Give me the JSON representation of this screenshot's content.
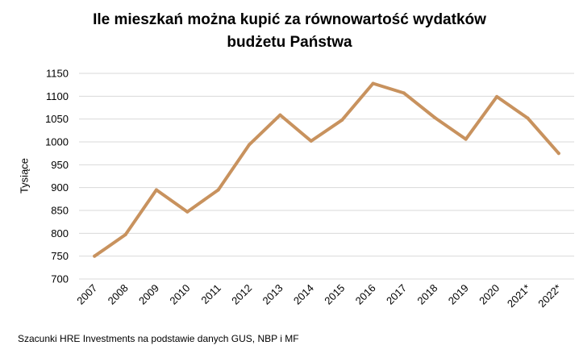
{
  "chart_data": {
    "type": "line",
    "title": "Ile mieszkań można kupić za równowartość wydatków budżetu Państwa",
    "title_lines": [
      "Ile mieszkań można kupić za równowartość wydatków",
      "budżetu Państwa"
    ],
    "xlabel": "",
    "ylabel": "Tysiące",
    "categories": [
      "2007",
      "2008",
      "2009",
      "2010",
      "2011",
      "2012",
      "2013",
      "2014",
      "2015",
      "2016",
      "2017",
      "2018",
      "2019",
      "2020",
      "2021*",
      "2022*"
    ],
    "series": [
      {
        "values": [
          750,
          797,
          895,
          847,
          895,
          994,
          1059,
          1002,
          1048,
          1128,
          1107,
          1053,
          1006,
          1099,
          1052,
          975
        ]
      }
    ],
    "ylim": [
      700,
      1150
    ],
    "yticks": [
      700,
      750,
      800,
      850,
      900,
      950,
      1000,
      1050,
      1100,
      1150
    ],
    "grid": true,
    "legend": "none",
    "line_color": "#C8925E",
    "grid_color": "#D9D9D9",
    "source": "Szacunki HRE Investments na podstawie danych GUS, NBP i MF"
  }
}
